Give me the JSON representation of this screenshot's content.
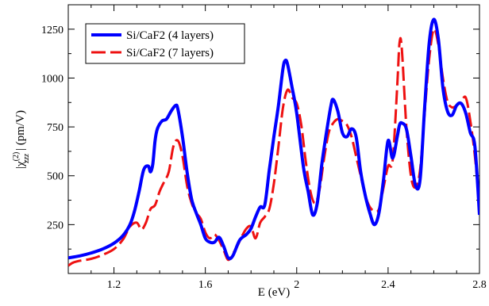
{
  "chart_data": {
    "type": "line",
    "xlabel": "E (eV)",
    "ylabel": {
      "prefix": "|χ",
      "sup": "(2)",
      "sub": "zzz",
      "suffix": "| (pm/V)"
    },
    "xlim": [
      1.0,
      2.8
    ],
    "ylim": [
      0,
      1375
    ],
    "xticks": [
      1.2,
      1.6,
      2.0,
      2.4,
      2.8
    ],
    "xtick_labels": [
      "1.2",
      "1.6",
      "2",
      "2.4",
      "2.8"
    ],
    "yticks": [
      250,
      500,
      750,
      1000,
      1250
    ],
    "ytick_labels": [
      "250",
      "500",
      "750",
      "1000",
      "1250"
    ],
    "grid": false,
    "legend_position": "top-left",
    "series": [
      {
        "name": "Si/CaF2 (4 layers)",
        "color": "#0000ff",
        "style": "solid",
        "x": [
          1.0,
          1.05,
          1.1,
          1.15,
          1.2,
          1.24,
          1.27,
          1.29,
          1.31,
          1.33,
          1.35,
          1.36,
          1.37,
          1.38,
          1.39,
          1.41,
          1.43,
          1.45,
          1.47,
          1.48,
          1.5,
          1.52,
          1.54,
          1.56,
          1.58,
          1.6,
          1.62,
          1.64,
          1.66,
          1.68,
          1.7,
          1.72,
          1.75,
          1.78,
          1.8,
          1.82,
          1.84,
          1.86,
          1.88,
          1.9,
          1.92,
          1.94,
          1.95,
          1.96,
          1.98,
          2.0,
          2.03,
          2.05,
          2.07,
          2.09,
          2.11,
          2.13,
          2.15,
          2.16,
          2.18,
          2.2,
          2.22,
          2.24,
          2.26,
          2.28,
          2.3,
          2.32,
          2.34,
          2.36,
          2.38,
          2.4,
          2.42,
          2.44,
          2.45,
          2.46,
          2.48,
          2.5,
          2.52,
          2.54,
          2.56,
          2.58,
          2.6,
          2.62,
          2.64,
          2.66,
          2.68,
          2.7,
          2.72,
          2.74,
          2.76,
          2.78,
          2.8
        ],
        "y": [
          80,
          90,
          105,
          125,
          155,
          195,
          250,
          320,
          420,
          530,
          550,
          520,
          560,
          680,
          740,
          780,
          790,
          830,
          860,
          840,
          700,
          520,
          380,
          310,
          250,
          180,
          160,
          160,
          185,
          140,
          80,
          90,
          170,
          200,
          230,
          290,
          340,
          350,
          530,
          700,
          860,
          1050,
          1090,
          1070,
          950,
          820,
          540,
          420,
          300,
          360,
          560,
          720,
          860,
          890,
          830,
          720,
          700,
          740,
          700,
          520,
          400,
          310,
          250,
          310,
          480,
          680,
          590,
          700,
          760,
          770,
          740,
          600,
          450,
          480,
          850,
          1180,
          1300,
          1200,
          950,
          830,
          810,
          860,
          870,
          820,
          720,
          650,
          300
        ]
      },
      {
        "name": "Si/CaF2 (7 layers)",
        "color": "#ee1111",
        "style": "dashed",
        "x": [
          1.0,
          1.02,
          1.05,
          1.1,
          1.15,
          1.2,
          1.24,
          1.27,
          1.3,
          1.32,
          1.34,
          1.36,
          1.38,
          1.4,
          1.42,
          1.44,
          1.46,
          1.48,
          1.5,
          1.52,
          1.54,
          1.56,
          1.58,
          1.6,
          1.62,
          1.64,
          1.66,
          1.68,
          1.7,
          1.72,
          1.74,
          1.76,
          1.78,
          1.8,
          1.82,
          1.84,
          1.86,
          1.88,
          1.9,
          1.92,
          1.94,
          1.96,
          1.98,
          2.0,
          2.02,
          2.04,
          2.06,
          2.08,
          2.1,
          2.12,
          2.14,
          2.16,
          2.18,
          2.2,
          2.22,
          2.24,
          2.26,
          2.28,
          2.3,
          2.32,
          2.34,
          2.36,
          2.38,
          2.4,
          2.42,
          2.44,
          2.45,
          2.46,
          2.48,
          2.5,
          2.52,
          2.54,
          2.56,
          2.58,
          2.6,
          2.62,
          2.64,
          2.66,
          2.68,
          2.7,
          2.72,
          2.74,
          2.76,
          2.78,
          2.8
        ],
        "y": [
          40,
          55,
          65,
          75,
          95,
          125,
          175,
          240,
          260,
          225,
          260,
          330,
          350,
          420,
          470,
          520,
          650,
          680,
          600,
          450,
          360,
          310,
          280,
          210,
          180,
          200,
          170,
          120,
          70,
          100,
          140,
          190,
          230,
          240,
          180,
          260,
          290,
          330,
          460,
          650,
          850,
          940,
          900,
          870,
          760,
          570,
          420,
          360,
          430,
          590,
          720,
          770,
          790,
          780,
          760,
          700,
          600,
          500,
          400,
          340,
          320,
          330,
          440,
          550,
          580,
          960,
          1180,
          1150,
          750,
          500,
          440,
          530,
          820,
          1100,
          1250,
          1170,
          1000,
          880,
          850,
          860,
          880,
          900,
          780,
          600,
          350
        ]
      }
    ]
  }
}
